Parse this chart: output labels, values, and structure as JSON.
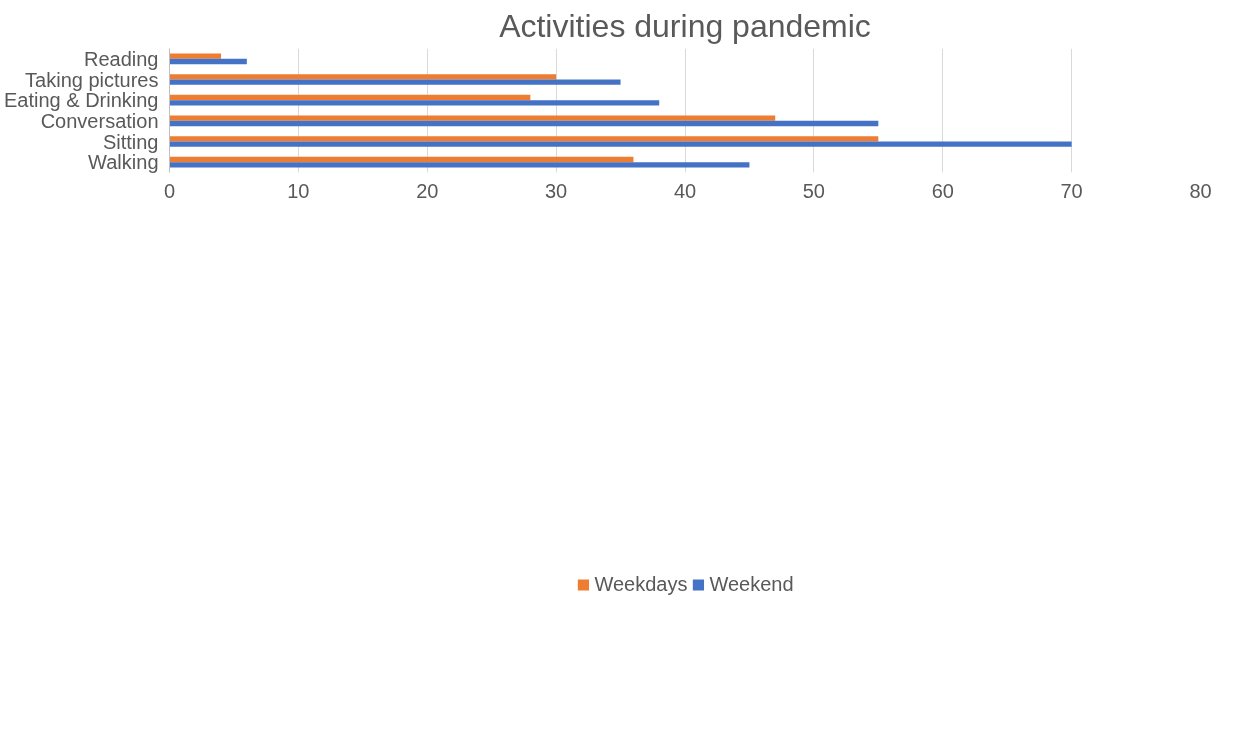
{
  "chart_data": {
    "type": "bar",
    "orientation": "horizontal",
    "title": "Activities during pandemic",
    "categories": [
      "Reading",
      "Taking pictures",
      "Eating & Drinking",
      "Conversation",
      "Sitting",
      "Walking"
    ],
    "series": [
      {
        "name": "Weekdays",
        "color": "#ed7d31",
        "values": [
          4,
          30,
          28,
          47,
          55,
          36
        ]
      },
      {
        "name": "Weekend",
        "color": "#4472c4",
        "values": [
          6,
          35,
          38,
          55,
          70,
          45
        ]
      }
    ],
    "xlim": [
      0,
      80
    ],
    "xticks": [
      0,
      10,
      20,
      30,
      40,
      50,
      60,
      70,
      80
    ],
    "grid": "x",
    "legend": "bottom"
  }
}
